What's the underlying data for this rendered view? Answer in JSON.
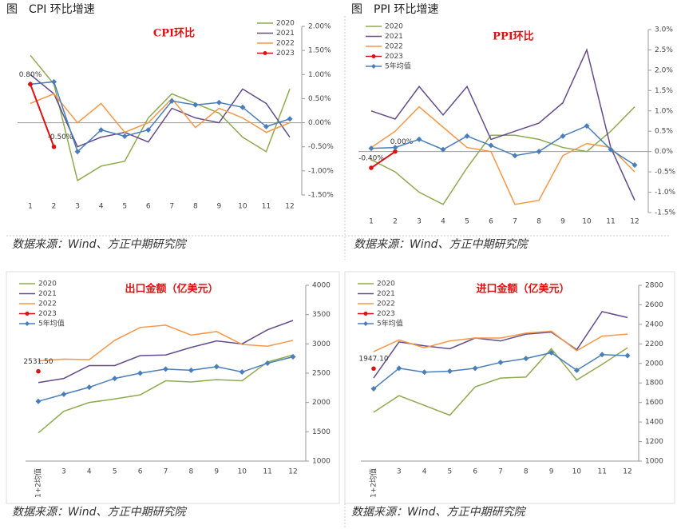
{
  "chart_data": [
    {
      "type": "line",
      "heading": "图　CPI 环比增速",
      "title": "CPI环比",
      "source": "数据来源：Wind、方正中期研究院",
      "categories": [
        "1",
        "2",
        "3",
        "4",
        "5",
        "6",
        "7",
        "8",
        "9",
        "10",
        "11",
        "12"
      ],
      "series": [
        {
          "name": "2020",
          "color": "#8eaa4f",
          "values": [
            1.4,
            0.8,
            -1.2,
            -0.9,
            -0.8,
            0.1,
            0.6,
            0.4,
            0.2,
            -0.3,
            -0.6,
            0.7
          ]
        },
        {
          "name": "2021",
          "color": "#634c8a",
          "values": [
            1.0,
            0.6,
            -0.5,
            -0.3,
            -0.2,
            -0.4,
            0.3,
            0.1,
            0.0,
            0.7,
            0.4,
            -0.3
          ]
        },
        {
          "name": "2022",
          "color": "#f79646",
          "values": [
            0.4,
            0.6,
            0.0,
            0.4,
            -0.2,
            0.0,
            0.5,
            -0.1,
            0.3,
            0.1,
            -0.2,
            0.0
          ]
        },
        {
          "color": "#4a7ebb",
          "marker": "diamond",
          "values": [
            0.8,
            0.85,
            -0.6,
            -0.15,
            -0.28,
            -0.15,
            0.45,
            0.37,
            0.42,
            0.32,
            -0.08,
            0.08
          ]
        },
        {
          "name": "2023",
          "color": "#e01010",
          "marker": "circle",
          "values": [
            0.8,
            -0.5,
            null,
            null,
            null,
            null,
            null,
            null,
            null,
            null,
            null,
            null
          ],
          "value_labels": [
            "0.80%",
            "-0.50%",
            null,
            null,
            null,
            null,
            null,
            null,
            null,
            null,
            null,
            null
          ]
        }
      ],
      "ylim": [
        -1.5,
        2
      ],
      "yticks": [
        {
          "value": 2,
          "label": "2.00%"
        },
        {
          "value": 1.5,
          "label": "1.50%"
        },
        {
          "value": 1,
          "label": "1.00%"
        },
        {
          "value": 0.5,
          "label": "0.50%"
        },
        {
          "value": 0,
          "label": "0.00%"
        },
        {
          "value": -0.5,
          "label": "-0.50%"
        },
        {
          "value": -1,
          "label": "-1.00%"
        },
        {
          "value": -1.5,
          "label": "-1.50%"
        }
      ],
      "legend": "upper right"
    },
    {
      "type": "line",
      "heading": "图　PPI 环比增速",
      "title": "PPI环比",
      "source": "数据来源：Wind、方正中期研究院",
      "categories": [
        "1",
        "2",
        "3",
        "4",
        "5",
        "6",
        "7",
        "8",
        "9",
        "10",
        "11",
        "12"
      ],
      "series": [
        {
          "name": "2020",
          "color": "#8eaa4f",
          "values": [
            -0.2,
            -0.5,
            -1.0,
            -1.3,
            -0.4,
            0.4,
            0.4,
            0.3,
            0.1,
            0.0,
            0.5,
            1.1
          ]
        },
        {
          "name": "2021",
          "color": "#634c8a",
          "values": [
            1.0,
            0.8,
            1.6,
            0.9,
            1.6,
            0.3,
            0.5,
            0.7,
            1.2,
            2.5,
            0.1,
            -1.2
          ]
        },
        {
          "name": "2022",
          "color": "#f79646",
          "values": [
            0.1,
            0.5,
            1.1,
            0.6,
            0.1,
            0.0,
            -1.3,
            -1.2,
            -0.1,
            0.2,
            0.1,
            -0.5
          ]
        },
        {
          "name": "2023",
          "color": "#e01010",
          "marker": "circle",
          "values": [
            -0.4,
            0.0,
            null,
            null,
            null,
            null,
            null,
            null,
            null,
            null,
            null,
            null
          ],
          "value_labels": [
            "-0.40%",
            "0.00%",
            null,
            null,
            null,
            null,
            null,
            null,
            null,
            null,
            null,
            null
          ]
        },
        {
          "name": "5年均值",
          "color": "#4a7ebb",
          "marker": "diamond",
          "values": [
            0.08,
            0.1,
            0.3,
            0.05,
            0.38,
            0.15,
            -0.1,
            0.0,
            0.38,
            0.63,
            0.05,
            -0.33
          ]
        }
      ],
      "ylim": [
        -1.5,
        3
      ],
      "yticks": [
        {
          "value": 3,
          "label": "3.0%"
        },
        {
          "value": 2.5,
          "label": "2.5%"
        },
        {
          "value": 2,
          "label": "2.0%"
        },
        {
          "value": 1.5,
          "label": "1.5%"
        },
        {
          "value": 1,
          "label": "1.0%"
        },
        {
          "value": 0.5,
          "label": "0.5%"
        },
        {
          "value": 0,
          "label": "0.0%"
        },
        {
          "value": -0.5,
          "label": "-0.5%"
        },
        {
          "value": -1,
          "label": "-1.0%"
        },
        {
          "value": -1.5,
          "label": "-1.5%"
        }
      ],
      "legend": "upper left"
    },
    {
      "type": "line",
      "title": "出口金额（亿美元）",
      "source": "数据来源：Wind、方正中期研究院",
      "categories": [
        "1+2均值",
        "3",
        "4",
        "5",
        "6",
        "7",
        "8",
        "9",
        "10",
        "11",
        "12"
      ],
      "series": [
        {
          "name": "2020",
          "color": "#8eaa4f",
          "values": [
            1480,
            1850,
            2000,
            2060,
            2130,
            2370,
            2350,
            2390,
            2370,
            2690,
            2810
          ]
        },
        {
          "name": "2021",
          "color": "#634c8a",
          "values": [
            2340,
            2410,
            2630,
            2630,
            2800,
            2810,
            2940,
            3050,
            3000,
            3240,
            3400
          ]
        },
        {
          "name": "2022",
          "color": "#f79646",
          "values": [
            2710,
            2740,
            2730,
            3060,
            3280,
            3320,
            3150,
            3210,
            2990,
            2960,
            3060
          ]
        },
        {
          "name": "2023",
          "color": "#e01010",
          "marker": "circle",
          "values": [
            2531.5,
            null,
            null,
            null,
            null,
            null,
            null,
            null,
            null,
            null,
            null
          ],
          "value_labels": [
            "2531.50",
            null,
            null,
            null,
            null,
            null,
            null,
            null,
            null,
            null,
            null
          ]
        },
        {
          "name": "5年均值",
          "color": "#4a7ebb",
          "marker": "diamond",
          "values": [
            2020,
            2140,
            2260,
            2410,
            2500,
            2570,
            2550,
            2610,
            2520,
            2670,
            2780
          ]
        }
      ],
      "ylim": [
        1000,
        4000
      ],
      "yticks": [
        4000,
        3500,
        3000,
        2500,
        2000,
        1500,
        1000
      ],
      "legend": "upper left"
    },
    {
      "type": "line",
      "title": "进口金额（亿美元）",
      "source": "数据来源：Wind、方正中期研究院",
      "categories": [
        "1+2均值",
        "3",
        "4",
        "5",
        "6",
        "7",
        "8",
        "9",
        "10",
        "11",
        "12"
      ],
      "series": [
        {
          "name": "2020",
          "color": "#8eaa4f",
          "values": [
            1500,
            1670,
            1570,
            1470,
            1760,
            1850,
            1860,
            2150,
            1830,
            1990,
            2160
          ]
        },
        {
          "name": "2021",
          "color": "#634c8a",
          "values": [
            1850,
            2220,
            2180,
            2150,
            2260,
            2230,
            2300,
            2320,
            2140,
            2530,
            2470
          ]
        },
        {
          "name": "2022",
          "color": "#f79646",
          "values": [
            2120,
            2240,
            2160,
            2230,
            2260,
            2260,
            2310,
            2330,
            2130,
            2280,
            2300
          ]
        },
        {
          "name": "2023",
          "color": "#e01010",
          "marker": "circle",
          "values": [
            1947.1,
            null,
            null,
            null,
            null,
            null,
            null,
            null,
            null,
            null,
            null
          ],
          "value_labels": [
            "1947.10",
            null,
            null,
            null,
            null,
            null,
            null,
            null,
            null,
            null,
            null
          ]
        },
        {
          "name": "5年均值",
          "color": "#4a7ebb",
          "marker": "diamond",
          "values": [
            1740,
            1950,
            1910,
            1920,
            1950,
            2010,
            2050,
            2110,
            1930,
            2090,
            2080
          ]
        }
      ],
      "ylim": [
        1000,
        2800
      ],
      "yticks": [
        2800,
        2600,
        2400,
        2200,
        2000,
        1800,
        1600,
        1400,
        1200,
        1000
      ],
      "legend": "upper left"
    }
  ]
}
